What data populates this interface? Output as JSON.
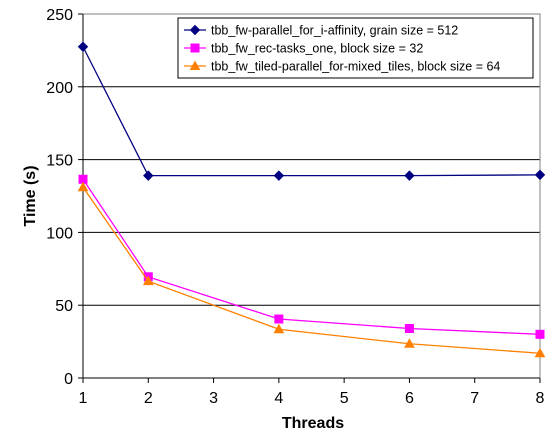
{
  "chart_data": {
    "type": "line",
    "xlabel": "Threads",
    "ylabel": "Time (s)",
    "xlim": [
      1,
      8
    ],
    "ylim": [
      0,
      250
    ],
    "x_ticks": [
      1,
      2,
      3,
      4,
      5,
      6,
      7,
      8
    ],
    "y_ticks": [
      0,
      50,
      100,
      150,
      200,
      250
    ],
    "grid": "horizontal",
    "legend_position": "top-right",
    "series": [
      {
        "name": "tbb_fw-parallel_for_i-affinity, grain size = 512",
        "color": "#000080",
        "marker": "diamond",
        "x": [
          1,
          2,
          4,
          6,
          8
        ],
        "y": [
          227.5,
          139,
          139,
          139,
          139.5
        ]
      },
      {
        "name": "tbb_fw_rec-tasks_one, block size = 32",
        "color": "#ff00ff",
        "marker": "square",
        "x": [
          1,
          2,
          4,
          6,
          8
        ],
        "y": [
          136.5,
          69.5,
          40.5,
          34,
          30
        ]
      },
      {
        "name": "tbb_fw_tiled-parallel_for-mixed_tiles, block size = 64",
        "color": "#ff8000",
        "marker": "triangle",
        "x": [
          1,
          2,
          4,
          6,
          8
        ],
        "y": [
          131,
          66.5,
          33.5,
          23.5,
          17
        ]
      }
    ]
  }
}
